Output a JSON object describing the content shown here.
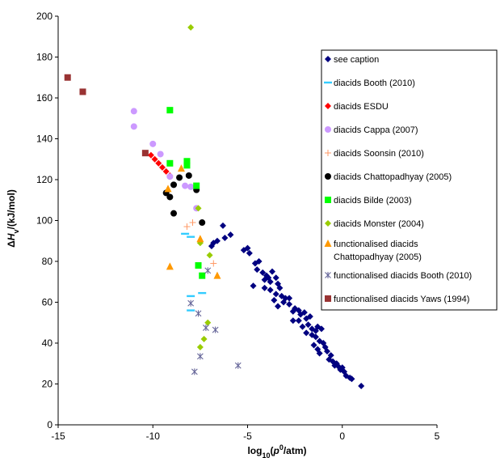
{
  "chart_data": {
    "type": "scatter",
    "xlabel": "log10(p0/atm)",
    "ylabel": "ΔHv/(kJ/mol)",
    "xlabel_parts": {
      "pre": "log",
      "sub": "10",
      "mid": "(",
      "italic": "p",
      "sup": "0",
      "post": "/atm)"
    },
    "ylabel_parts": {
      "pre": "Δ",
      "italic": "H",
      "sub": "v",
      "post": "/(kJ/mol)"
    },
    "xlim": [
      -15,
      5
    ],
    "ylim": [
      0,
      200
    ],
    "x_ticks": [
      -15,
      -10,
      -5,
      0,
      5
    ],
    "y_ticks": [
      0,
      20,
      40,
      60,
      80,
      100,
      120,
      140,
      160,
      180,
      200
    ],
    "grid": false,
    "legend_position": "right",
    "series": [
      {
        "name": "see caption",
        "marker": "diamond",
        "color": "#000080",
        "points": [
          [
            -6.3,
            97.5
          ],
          [
            -6.2,
            91.5
          ],
          [
            -5.9,
            93
          ],
          [
            -6.8,
            89
          ],
          [
            -6.6,
            90
          ],
          [
            -6.9,
            87.5
          ],
          [
            -5.2,
            85.5
          ],
          [
            -5.0,
            86.5
          ],
          [
            -4.9,
            84
          ],
          [
            -4.6,
            79
          ],
          [
            -4.4,
            80
          ],
          [
            -4.5,
            76
          ],
          [
            -4.2,
            74.5
          ],
          [
            -4.0,
            73
          ],
          [
            -3.9,
            72
          ],
          [
            -3.7,
            75
          ],
          [
            -4.1,
            71
          ],
          [
            -3.8,
            70
          ],
          [
            -3.5,
            72
          ],
          [
            -3.4,
            69
          ],
          [
            -3.3,
            67
          ],
          [
            -4.1,
            67
          ],
          [
            -3.8,
            66
          ],
          [
            -3.5,
            64
          ],
          [
            -3.2,
            63
          ],
          [
            -3.0,
            62
          ],
          [
            -3.6,
            61
          ],
          [
            -3.1,
            60
          ],
          [
            -2.8,
            59
          ],
          [
            -2.5,
            57
          ],
          [
            -2.3,
            56
          ],
          [
            -2.2,
            54
          ],
          [
            -2.6,
            55.5
          ],
          [
            -2.0,
            55
          ],
          [
            -1.9,
            52
          ],
          [
            -1.7,
            53
          ],
          [
            -2.3,
            51
          ],
          [
            -2.6,
            51
          ],
          [
            -3.4,
            58
          ],
          [
            -1.8,
            49
          ],
          [
            -1.6,
            47
          ],
          [
            -1.4,
            46
          ],
          [
            -1.3,
            48
          ],
          [
            -1.1,
            47
          ],
          [
            -2.1,
            48
          ],
          [
            -1.9,
            45
          ],
          [
            -1.6,
            44
          ],
          [
            -1.4,
            43
          ],
          [
            -1.2,
            41
          ],
          [
            -1.0,
            40
          ],
          [
            -1.5,
            39
          ],
          [
            -0.9,
            38
          ],
          [
            -1.3,
            37
          ],
          [
            -0.8,
            36
          ],
          [
            -0.6,
            34
          ],
          [
            -0.7,
            32
          ],
          [
            -0.5,
            31
          ],
          [
            -0.3,
            30
          ],
          [
            -0.2,
            28.5
          ],
          [
            0.0,
            28
          ],
          [
            -0.1,
            27
          ],
          [
            0.1,
            26
          ],
          [
            0.2,
            24
          ],
          [
            0.4,
            23
          ],
          [
            0.5,
            22.5
          ],
          [
            1.0,
            19
          ],
          [
            -1.2,
            35
          ],
          [
            -0.4,
            29
          ],
          [
            -2.8,
            62
          ],
          [
            -4.7,
            68
          ]
        ]
      },
      {
        "name": "diacids Booth (2010)",
        "marker": "dash",
        "color": "#33CCFF",
        "points": [
          [
            -8.3,
            93.5
          ],
          [
            -8.0,
            92
          ],
          [
            -7.4,
            64.5
          ],
          [
            -8.0,
            63
          ],
          [
            -8.0,
            56
          ]
        ]
      },
      {
        "name": "diacids ESDU",
        "marker": "diamond",
        "color": "#FF0000",
        "points": [
          [
            -10.1,
            132
          ],
          [
            -9.9,
            130
          ],
          [
            -9.7,
            128
          ],
          [
            -9.5,
            126
          ],
          [
            -9.3,
            124
          ],
          [
            -9.1,
            122
          ]
        ]
      },
      {
        "name": "diacids Cappa (2007)",
        "marker": "circle",
        "color": "#CC99FF",
        "points": [
          [
            -11.0,
            153.5
          ],
          [
            -11.0,
            146
          ],
          [
            -10.0,
            137.5
          ],
          [
            -9.6,
            132.5
          ],
          [
            -8.0,
            116.5
          ],
          [
            -7.7,
            106
          ],
          [
            -9.1,
            121.5
          ],
          [
            -8.3,
            117
          ]
        ]
      },
      {
        "name": "diacids Soonsin (2010)",
        "marker": "plus",
        "color": "#FF9966",
        "points": [
          [
            -8.2,
            97
          ],
          [
            -7.9,
            99
          ],
          [
            -6.8,
            79
          ]
        ]
      },
      {
        "name": "diacids Chattopadhyay (2005)",
        "marker": "circle",
        "color": "#000000",
        "points": [
          [
            -8.1,
            122
          ],
          [
            -7.7,
            115
          ],
          [
            -7.4,
            99
          ],
          [
            -9.3,
            113.5
          ],
          [
            -9.1,
            111.5
          ],
          [
            -8.9,
            117.5
          ],
          [
            -8.6,
            121
          ],
          [
            -8.9,
            103.5
          ]
        ]
      },
      {
        "name": "diacids Bilde (2003)",
        "marker": "square",
        "color": "#00FF00",
        "points": [
          [
            -9.1,
            154
          ],
          [
            -9.1,
            128
          ],
          [
            -8.2,
            129
          ],
          [
            -8.2,
            127
          ],
          [
            -7.7,
            117
          ],
          [
            -7.6,
            78
          ],
          [
            -7.4,
            73
          ]
        ]
      },
      {
        "name": "diacids Monster (2004)",
        "marker": "diamond",
        "color": "#99CC00",
        "points": [
          [
            -8.0,
            194.5
          ],
          [
            -7.6,
            106
          ],
          [
            -7.5,
            89
          ],
          [
            -7.0,
            83
          ],
          [
            -7.5,
            38
          ],
          [
            -7.3,
            42
          ],
          [
            -7.1,
            50
          ]
        ]
      },
      {
        "name": "functionalised diacids Chattopadhyay (2005)",
        "marker": "triangle",
        "color": "#FF9900",
        "points": [
          [
            -9.2,
            115.5
          ],
          [
            -8.5,
            125.5
          ],
          [
            -7.5,
            91
          ],
          [
            -9.1,
            77.5
          ],
          [
            -6.6,
            73
          ]
        ]
      },
      {
        "name": "functionalised diacids Booth (2010)",
        "marker": "asterisk",
        "color": "#666699",
        "points": [
          [
            -7.1,
            75.5
          ],
          [
            -8.0,
            59.5
          ],
          [
            -7.6,
            54.5
          ],
          [
            -7.2,
            47.5
          ],
          [
            -6.7,
            46.5
          ],
          [
            -7.5,
            33.5
          ],
          [
            -7.8,
            26
          ],
          [
            -5.5,
            29
          ]
        ]
      },
      {
        "name": "functionalised diacids Yaws (1994)",
        "marker": "square",
        "color": "#993333",
        "points": [
          [
            -14.5,
            170
          ],
          [
            -13.7,
            163
          ],
          [
            -10.4,
            133
          ]
        ]
      }
    ],
    "legend_labels": [
      {
        "lines": [
          "see caption"
        ]
      },
      {
        "lines": [
          "diacids Booth (2010)"
        ]
      },
      {
        "lines": [
          "diacids ESDU"
        ]
      },
      {
        "lines": [
          "diacids Cappa (2007)"
        ]
      },
      {
        "lines": [
          "diacids Soonsin (2010)"
        ]
      },
      {
        "lines": [
          "diacids Chattopadhyay (2005)"
        ]
      },
      {
        "lines": [
          "diacids Bilde (2003)"
        ]
      },
      {
        "lines": [
          "diacids Monster (2004)"
        ]
      },
      {
        "lines": [
          "functionalised diacids",
          "Chattopadhyay (2005)"
        ]
      },
      {
        "lines": [
          "functionalised diacids Booth (2010)"
        ]
      },
      {
        "lines": [
          "functionalised diacids Yaws (1994)"
        ]
      }
    ]
  }
}
